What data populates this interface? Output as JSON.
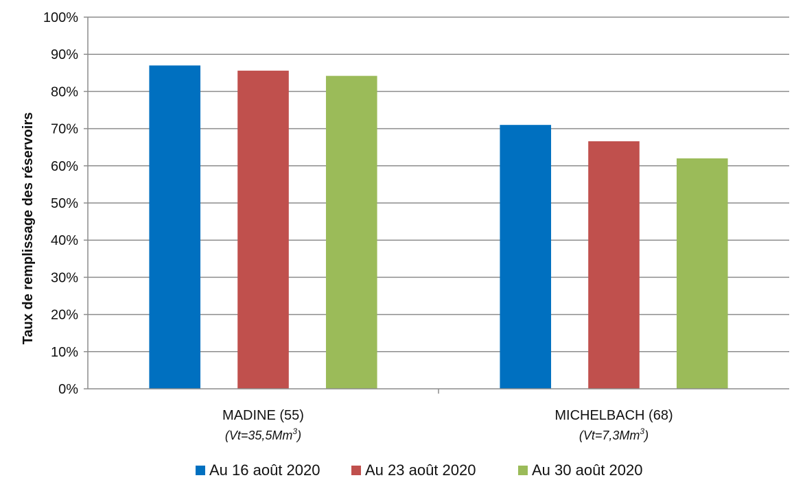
{
  "chart_data": {
    "type": "bar",
    "ylabel": "Taux de remplissage des réservoirs",
    "ylim": [
      0,
      100
    ],
    "y_ticks": [
      "0%",
      "10%",
      "20%",
      "30%",
      "40%",
      "50%",
      "60%",
      "70%",
      "80%",
      "90%",
      "100%"
    ],
    "grid": true,
    "legend_position": "bottom",
    "categories": [
      {
        "name": "MADINE (55)",
        "sub_prefix": "(Vt=35,5Mm",
        "sub_sup": "3",
        "sub_suffix": ")"
      },
      {
        "name": "MICHELBACH (68)",
        "sub_prefix": "(Vt=7,3Mm",
        "sub_sup": "3",
        "sub_suffix": ")"
      }
    ],
    "series": [
      {
        "name": "Au 16 août 2020",
        "color": "#0070c0",
        "values": [
          87,
          71
        ]
      },
      {
        "name": "Au 23 août 2020",
        "color": "#c0504d",
        "values": [
          85.6,
          66.6
        ]
      },
      {
        "name": "Au 30 août 2020",
        "color": "#9bbb59",
        "values": [
          84.2,
          62
        ]
      }
    ]
  }
}
